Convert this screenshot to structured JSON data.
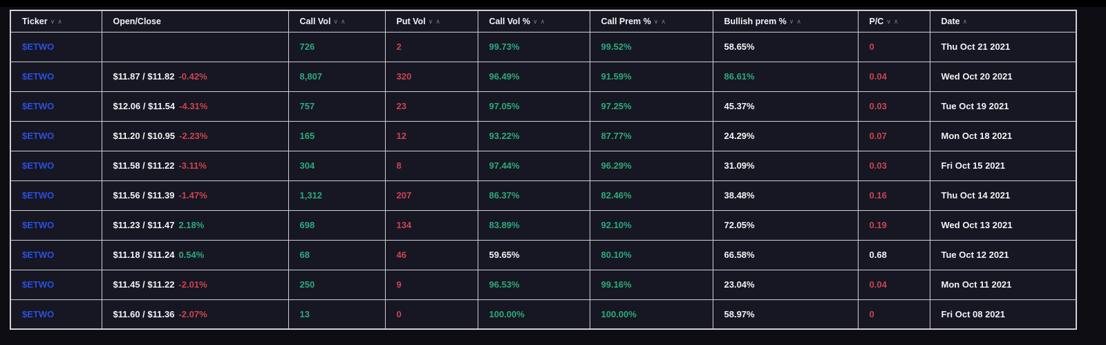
{
  "colors": {
    "green": "#2ea97c",
    "red": "#cb4352",
    "blue": "#2d4ee0",
    "white": "#f2f2f4"
  },
  "table": {
    "columns": [
      {
        "id": "ticker",
        "label": "Ticker",
        "sort_icons": [
          "desc",
          "asc"
        ]
      },
      {
        "id": "open-close",
        "label": "Open/Close",
        "sort_icons": []
      },
      {
        "id": "call-vol",
        "label": "Call Vol",
        "sort_icons": [
          "desc",
          "asc"
        ]
      },
      {
        "id": "put-vol",
        "label": "Put Vol",
        "sort_icons": [
          "desc",
          "asc"
        ]
      },
      {
        "id": "call-vol-pct",
        "label": "Call Vol %",
        "sort_icons": [
          "desc",
          "asc"
        ]
      },
      {
        "id": "call-prem-pct",
        "label": "Call Prem %",
        "sort_icons": [
          "desc",
          "asc"
        ]
      },
      {
        "id": "bullish-prem-pct",
        "label": "Bullish prem %",
        "sort_icons": [
          "desc",
          "asc"
        ]
      },
      {
        "id": "pc",
        "label": "P/C",
        "sort_icons": [
          "desc",
          "asc"
        ]
      },
      {
        "id": "date",
        "label": "Date",
        "sort_icons": [
          "asc"
        ]
      }
    ],
    "rows": [
      {
        "ticker": "$ETWO",
        "open_close": {
          "prices": "",
          "change": "",
          "change_color": "white"
        },
        "call_vol": "726",
        "put_vol": "2",
        "call_vol_pct": {
          "text": "99.73%",
          "color": "green"
        },
        "call_prem_pct": {
          "text": "99.52%",
          "color": "green"
        },
        "bullish_prem_pct": {
          "text": "58.65%",
          "color": "white"
        },
        "pc": {
          "text": "0",
          "color": "red"
        },
        "date": "Thu Oct 21 2021"
      },
      {
        "ticker": "$ETWO",
        "open_close": {
          "prices": "$11.87 / $11.82",
          "change": "-0.42%",
          "change_color": "red"
        },
        "call_vol": "8,807",
        "put_vol": "320",
        "call_vol_pct": {
          "text": "96.49%",
          "color": "green"
        },
        "call_prem_pct": {
          "text": "91.59%",
          "color": "green"
        },
        "bullish_prem_pct": {
          "text": "86.61%",
          "color": "green"
        },
        "pc": {
          "text": "0.04",
          "color": "red"
        },
        "date": "Wed Oct 20 2021"
      },
      {
        "ticker": "$ETWO",
        "open_close": {
          "prices": "$12.06 / $11.54",
          "change": "-4.31%",
          "change_color": "red"
        },
        "call_vol": "757",
        "put_vol": "23",
        "call_vol_pct": {
          "text": "97.05%",
          "color": "green"
        },
        "call_prem_pct": {
          "text": "97.25%",
          "color": "green"
        },
        "bullish_prem_pct": {
          "text": "45.37%",
          "color": "white"
        },
        "pc": {
          "text": "0.03",
          "color": "red"
        },
        "date": "Tue Oct 19 2021"
      },
      {
        "ticker": "$ETWO",
        "open_close": {
          "prices": "$11.20 / $10.95",
          "change": "-2.23%",
          "change_color": "red"
        },
        "call_vol": "165",
        "put_vol": "12",
        "call_vol_pct": {
          "text": "93.22%",
          "color": "green"
        },
        "call_prem_pct": {
          "text": "87.77%",
          "color": "green"
        },
        "bullish_prem_pct": {
          "text": "24.29%",
          "color": "white"
        },
        "pc": {
          "text": "0.07",
          "color": "red"
        },
        "date": "Mon Oct 18 2021"
      },
      {
        "ticker": "$ETWO",
        "open_close": {
          "prices": "$11.58 / $11.22",
          "change": "-3.11%",
          "change_color": "red"
        },
        "call_vol": "304",
        "put_vol": "8",
        "call_vol_pct": {
          "text": "97.44%",
          "color": "green"
        },
        "call_prem_pct": {
          "text": "96.29%",
          "color": "green"
        },
        "bullish_prem_pct": {
          "text": "31.09%",
          "color": "white"
        },
        "pc": {
          "text": "0.03",
          "color": "red"
        },
        "date": "Fri Oct 15 2021"
      },
      {
        "ticker": "$ETWO",
        "open_close": {
          "prices": "$11.56 / $11.39",
          "change": "-1.47%",
          "change_color": "red"
        },
        "call_vol": "1,312",
        "put_vol": "207",
        "call_vol_pct": {
          "text": "86.37%",
          "color": "green"
        },
        "call_prem_pct": {
          "text": "82.46%",
          "color": "green"
        },
        "bullish_prem_pct": {
          "text": "38.48%",
          "color": "white"
        },
        "pc": {
          "text": "0.16",
          "color": "red"
        },
        "date": "Thu Oct 14 2021"
      },
      {
        "ticker": "$ETWO",
        "open_close": {
          "prices": "$11.23 / $11.47",
          "change": "2.18%",
          "change_color": "green"
        },
        "call_vol": "698",
        "put_vol": "134",
        "call_vol_pct": {
          "text": "83.89%",
          "color": "green"
        },
        "call_prem_pct": {
          "text": "92.10%",
          "color": "green"
        },
        "bullish_prem_pct": {
          "text": "72.05%",
          "color": "white"
        },
        "pc": {
          "text": "0.19",
          "color": "red"
        },
        "date": "Wed Oct 13 2021"
      },
      {
        "ticker": "$ETWO",
        "open_close": {
          "prices": "$11.18 / $11.24",
          "change": "0.54%",
          "change_color": "green"
        },
        "call_vol": "68",
        "put_vol": "46",
        "call_vol_pct": {
          "text": "59.65%",
          "color": "white"
        },
        "call_prem_pct": {
          "text": "80.10%",
          "color": "green"
        },
        "bullish_prem_pct": {
          "text": "66.58%",
          "color": "white"
        },
        "pc": {
          "text": "0.68",
          "color": "white"
        },
        "date": "Tue Oct 12 2021"
      },
      {
        "ticker": "$ETWO",
        "open_close": {
          "prices": "$11.45 / $11.22",
          "change": "-2.01%",
          "change_color": "red"
        },
        "call_vol": "250",
        "put_vol": "9",
        "call_vol_pct": {
          "text": "96.53%",
          "color": "green"
        },
        "call_prem_pct": {
          "text": "99.16%",
          "color": "green"
        },
        "bullish_prem_pct": {
          "text": "23.04%",
          "color": "white"
        },
        "pc": {
          "text": "0.04",
          "color": "red"
        },
        "date": "Mon Oct 11 2021"
      },
      {
        "ticker": "$ETWO",
        "open_close": {
          "prices": "$11.60 / $11.36",
          "change": "-2.07%",
          "change_color": "red"
        },
        "call_vol": "13",
        "put_vol": "0",
        "call_vol_pct": {
          "text": "100.00%",
          "color": "green"
        },
        "call_prem_pct": {
          "text": "100.00%",
          "color": "green"
        },
        "bullish_prem_pct": {
          "text": "58.97%",
          "color": "white"
        },
        "pc": {
          "text": "0",
          "color": "red"
        },
        "date": "Fri Oct 08 2021"
      }
    ]
  }
}
